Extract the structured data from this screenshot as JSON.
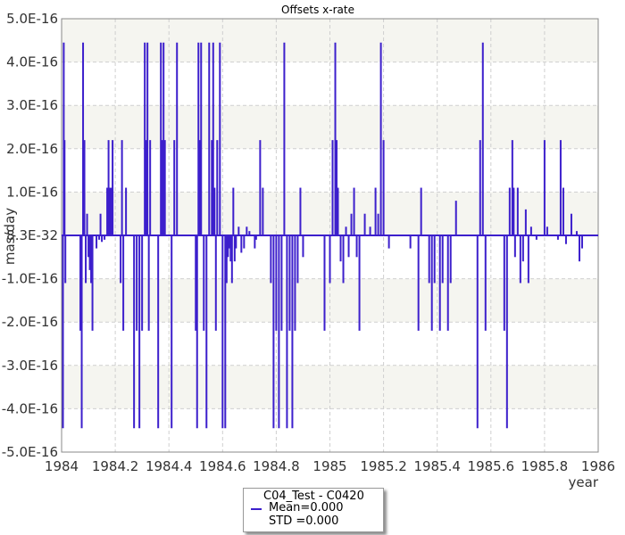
{
  "chart_data": {
    "type": "line",
    "title": "Offsets x-rate",
    "xlabel": "year",
    "ylabel": "mas/day",
    "xlim": [
      1984,
      1986
    ],
    "ylim": [
      -5e-16,
      5e-16
    ],
    "x_ticks": [
      1984,
      1984.2,
      1984.4,
      1984.6,
      1984.8,
      1985,
      1985.2,
      1985.4,
      1985.6,
      1985.8,
      1986
    ],
    "x_tick_labels": [
      "1984",
      "1984.2",
      "1984.4",
      "1984.6",
      "1984.8",
      "1985",
      "1985.2",
      "1985.4",
      "1985.6",
      "1985.8",
      "1986"
    ],
    "y_ticks": [
      5e-16,
      4e-16,
      3e-16,
      2e-16,
      1e-16,
      0,
      -1e-16,
      -2e-16,
      -3e-16,
      -4e-16,
      -5e-16
    ],
    "y_tick_labels": [
      "5.0E-16",
      "4.0E-16",
      "3.0E-16",
      "2.0E-16",
      "1.0E-16",
      "8.3E-32",
      "-1.0E-16",
      "-2.0E-16",
      "-3.0E-16",
      "-4.0E-16",
      "-5.0E-16"
    ],
    "grid": true,
    "legend_position": "bottom-center",
    "colors": {
      "series": "#3c1fcc",
      "band": "#f5f5f0"
    },
    "series": [
      {
        "name": "C04_Test - C0420",
        "stats": [
          "Mean=0.000",
          "STD =0.000"
        ],
        "spikes": [
          [
            1984.005,
            -4.45e-16
          ],
          [
            1984.008,
            4.45e-16
          ],
          [
            1984.011,
            2.2e-16
          ],
          [
            1984.014,
            -1.1e-16
          ],
          [
            1984.07,
            -2.2e-16
          ],
          [
            1984.075,
            -4.45e-16
          ],
          [
            1984.08,
            4.45e-16
          ],
          [
            1984.085,
            2.2e-16
          ],
          [
            1984.09,
            -1.1e-16
          ],
          [
            1984.095,
            5e-17
          ],
          [
            1984.1,
            -5e-17
          ],
          [
            1984.105,
            -8e-17
          ],
          [
            1984.11,
            -1.1e-16
          ],
          [
            1984.115,
            -2.2e-16
          ],
          [
            1984.13,
            -3e-17
          ],
          [
            1984.14,
            -1e-17
          ],
          [
            1984.145,
            5e-17
          ],
          [
            1984.15,
            -1.5e-17
          ],
          [
            1984.16,
            -1e-17
          ],
          [
            1984.17,
            1.1e-16
          ],
          [
            1984.175,
            2.2e-16
          ],
          [
            1984.18,
            1.1e-16
          ],
          [
            1984.185,
            1.1e-16
          ],
          [
            1984.19,
            2.2e-16
          ],
          [
            1984.22,
            -1.1e-16
          ],
          [
            1984.225,
            2.2e-16
          ],
          [
            1984.23,
            -2.2e-16
          ],
          [
            1984.24,
            1.1e-16
          ],
          [
            1984.27,
            -4.45e-16
          ],
          [
            1984.28,
            -2.2e-16
          ],
          [
            1984.29,
            -4.45e-16
          ],
          [
            1984.3,
            -2.2e-16
          ],
          [
            1984.31,
            4.45e-16
          ],
          [
            1984.315,
            2.2e-16
          ],
          [
            1984.32,
            4.45e-16
          ],
          [
            1984.325,
            -2.2e-16
          ],
          [
            1984.33,
            2.2e-16
          ],
          [
            1984.36,
            -4.45e-16
          ],
          [
            1984.37,
            4.45e-16
          ],
          [
            1984.375,
            2.2e-16
          ],
          [
            1984.38,
            4.45e-16
          ],
          [
            1984.385,
            2.2e-16
          ],
          [
            1984.41,
            -4.45e-16
          ],
          [
            1984.42,
            2.2e-16
          ],
          [
            1984.43,
            4.45e-16
          ],
          [
            1984.5,
            -2.2e-16
          ],
          [
            1984.505,
            -4.45e-16
          ],
          [
            1984.51,
            4.45e-16
          ],
          [
            1984.515,
            2.2e-16
          ],
          [
            1984.52,
            4.45e-16
          ],
          [
            1984.53,
            -2.2e-16
          ],
          [
            1984.54,
            -4.45e-16
          ],
          [
            1984.55,
            4.45e-16
          ],
          [
            1984.56,
            2.2e-16
          ],
          [
            1984.565,
            4.45e-16
          ],
          [
            1984.57,
            1.1e-16
          ],
          [
            1984.575,
            -2.2e-16
          ],
          [
            1984.58,
            2.2e-16
          ],
          [
            1984.59,
            4.45e-16
          ],
          [
            1984.6,
            -4.45e-16
          ],
          [
            1984.61,
            -4.45e-16
          ],
          [
            1984.615,
            -1.1e-16
          ],
          [
            1984.62,
            -5e-17
          ],
          [
            1984.625,
            -3e-17
          ],
          [
            1984.63,
            -6e-17
          ],
          [
            1984.635,
            -1.1e-16
          ],
          [
            1984.64,
            1.1e-16
          ],
          [
            1984.645,
            -6e-17
          ],
          [
            1984.65,
            -3e-17
          ],
          [
            1984.66,
            2e-17
          ],
          [
            1984.67,
            -4e-17
          ],
          [
            1984.68,
            -3e-17
          ],
          [
            1984.69,
            2e-17
          ],
          [
            1984.7,
            1e-17
          ],
          [
            1984.72,
            -3e-17
          ],
          [
            1984.725,
            -1e-17
          ],
          [
            1984.74,
            2.2e-16
          ],
          [
            1984.75,
            1.1e-16
          ],
          [
            1984.78,
            -1.1e-16
          ],
          [
            1984.79,
            -4.45e-16
          ],
          [
            1984.8,
            -2.2e-16
          ],
          [
            1984.81,
            -4.45e-16
          ],
          [
            1984.82,
            -2.2e-16
          ],
          [
            1984.83,
            4.45e-16
          ],
          [
            1984.84,
            -4.45e-16
          ],
          [
            1984.85,
            -2.2e-16
          ],
          [
            1984.86,
            -4.45e-16
          ],
          [
            1984.87,
            -2.2e-16
          ],
          [
            1984.88,
            -1.1e-16
          ],
          [
            1984.89,
            1.1e-16
          ],
          [
            1984.9,
            -5e-17
          ],
          [
            1984.98,
            -2.2e-16
          ],
          [
            1985.0,
            -1.1e-16
          ],
          [
            1985.01,
            2.2e-16
          ],
          [
            1985.02,
            4.45e-16
          ],
          [
            1985.025,
            2.2e-16
          ],
          [
            1985.03,
            1.1e-16
          ],
          [
            1985.04,
            -6e-17
          ],
          [
            1985.05,
            -1.1e-16
          ],
          [
            1985.06,
            2e-17
          ],
          [
            1985.07,
            -5e-17
          ],
          [
            1985.08,
            5e-17
          ],
          [
            1985.09,
            1.1e-16
          ],
          [
            1985.1,
            -5e-17
          ],
          [
            1985.11,
            -2.2e-16
          ],
          [
            1985.13,
            5e-17
          ],
          [
            1985.15,
            2e-17
          ],
          [
            1985.17,
            1.1e-16
          ],
          [
            1985.18,
            5e-17
          ],
          [
            1985.19,
            4.45e-16
          ],
          [
            1985.2,
            2.2e-16
          ],
          [
            1985.22,
            -3e-17
          ],
          [
            1985.3,
            -3e-17
          ],
          [
            1985.33,
            -2.2e-16
          ],
          [
            1985.34,
            1.1e-16
          ],
          [
            1985.37,
            -1.1e-16
          ],
          [
            1985.38,
            -2.2e-16
          ],
          [
            1985.39,
            -1.1e-16
          ],
          [
            1985.41,
            -2.2e-16
          ],
          [
            1985.42,
            -1.1e-16
          ],
          [
            1985.44,
            -2.2e-16
          ],
          [
            1985.45,
            -1.1e-16
          ],
          [
            1985.47,
            8e-17
          ],
          [
            1985.55,
            -4.45e-16
          ],
          [
            1985.56,
            2.2e-16
          ],
          [
            1985.57,
            4.45e-16
          ],
          [
            1985.58,
            -2.2e-16
          ],
          [
            1985.65,
            -2.2e-16
          ],
          [
            1985.66,
            -4.45e-16
          ],
          [
            1985.67,
            1.1e-16
          ],
          [
            1985.68,
            2.2e-16
          ],
          [
            1985.685,
            1.1e-16
          ],
          [
            1985.69,
            -5e-17
          ],
          [
            1985.7,
            1.1e-16
          ],
          [
            1985.71,
            -1.1e-16
          ],
          [
            1985.72,
            -6e-17
          ],
          [
            1985.73,
            6e-17
          ],
          [
            1985.74,
            -1.1e-16
          ],
          [
            1985.75,
            2e-17
          ],
          [
            1985.77,
            -1e-17
          ],
          [
            1985.8,
            2.2e-16
          ],
          [
            1985.81,
            2e-17
          ],
          [
            1985.85,
            -1e-17
          ],
          [
            1985.86,
            2.2e-16
          ],
          [
            1985.87,
            1.1e-16
          ],
          [
            1985.88,
            -2e-17
          ],
          [
            1985.9,
            5e-17
          ],
          [
            1985.92,
            1e-17
          ],
          [
            1985.93,
            -6e-17
          ],
          [
            1985.94,
            -3e-17
          ]
        ]
      }
    ]
  }
}
